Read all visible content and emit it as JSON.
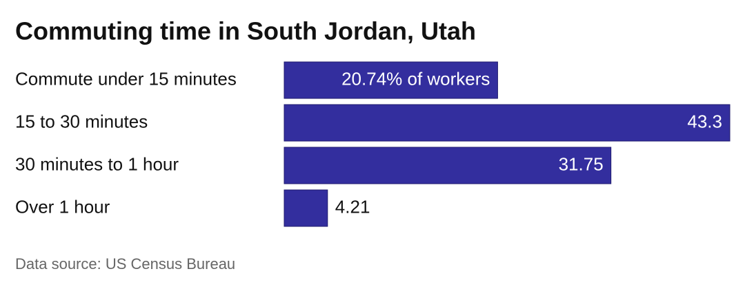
{
  "chart_data": {
    "type": "bar",
    "orientation": "horizontal",
    "title": "Commuting time in South Jordan, Utah",
    "categories": [
      "Commute under 15 minutes",
      "15 to 30 minutes",
      "30 minutes to 1 hour",
      "Over 1 hour"
    ],
    "values": [
      20.74,
      43.3,
      31.75,
      4.21
    ],
    "value_labels": [
      "20.74% of workers",
      "43.3",
      "31.75",
      "4.21"
    ],
    "color": "#332e9e",
    "source": "Data source: US Census Bureau"
  }
}
